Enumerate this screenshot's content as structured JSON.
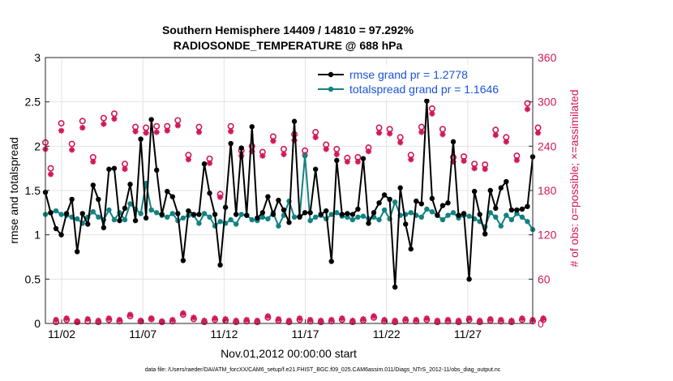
{
  "chart_data": {
    "type": "line",
    "title": "Southern Hemisphere 14409 / 14810 = 97.292%",
    "subtitle": "RADIOSONDE_TEMPERATURE @ 688 hPa",
    "xlabel": "Nov.01,2012 00:00:00 start",
    "ylabel_left": "rmse and totalspread",
    "ylabel_right": "# of obs: o=possible; ×=assimilated",
    "footer": "data file: /Users/raeder/DAI/ATM_forcXX/CAM6_setup/f.e21.FHIST_BGC.f09_025.CAM6assim.011/Diags_NTrS_2012-11/obs_diag_output.nc",
    "x_ticks": [
      {
        "day": 2,
        "label": "11/02"
      },
      {
        "day": 7,
        "label": "11/07"
      },
      {
        "day": 12,
        "label": "11/12"
      },
      {
        "day": 17,
        "label": "11/17"
      },
      {
        "day": 22,
        "label": "11/22"
      },
      {
        "day": 27,
        "label": "11/27"
      }
    ],
    "xlim": [
      1.0,
      31.0
    ],
    "ylim_left": [
      0,
      3
    ],
    "yticks_left": [
      "0",
      "0.5",
      "1",
      "1.5",
      "2",
      "2.5",
      "3"
    ],
    "ylim_right": [
      0,
      360
    ],
    "yticks_right": [
      "0",
      "60",
      "120",
      "180",
      "240",
      "300",
      "360"
    ],
    "legend_position": "top-right",
    "colors": {
      "rmse": "#000000",
      "spread": "#128282",
      "obs": "#d1185a",
      "legend_text": "#1a53d8",
      "grid": "#e2e2e2"
    },
    "series": [
      {
        "name": "rmse grand pr = 1.2778",
        "key": "rmse",
        "values": [
          1.48,
          1.25,
          1.07,
          1.0,
          1.24,
          1.4,
          0.81,
          1.24,
          1.12,
          1.56,
          1.4,
          1.08,
          1.74,
          1.75,
          1.16,
          1.3,
          1.57,
          1.16,
          2.08,
          1.19,
          2.3,
          1.73,
          1.23,
          1.49,
          1.43,
          1.24,
          0.71,
          1.27,
          1.23,
          1.23,
          1.8,
          1.47,
          1.23,
          0.66,
          1.31,
          2.03,
          1.23,
          1.98,
          1.22,
          2.22,
          1.19,
          1.25,
          1.43,
          1.23,
          1.39,
          1.28,
          1.14,
          2.28,
          1.2,
          1.25,
          1.25,
          1.74,
          1.23,
          1.27,
          0.7,
          1.84,
          1.23,
          1.24,
          1.23,
          1.29,
          1.86,
          1.13,
          1.25,
          1.36,
          1.45,
          1.4,
          0.41,
          1.53,
          1.12,
          0.84,
          1.38,
          1.35,
          2.51,
          1.41,
          1.22,
          1.33,
          1.36,
          2.05,
          1.22,
          1.24,
          0.5,
          1.49,
          1.23,
          1.01,
          1.5,
          1.3,
          1.53,
          1.6,
          1.28,
          1.28,
          1.29,
          1.32,
          1.88
        ]
      },
      {
        "name": "totalspread grand pr = 1.1646",
        "key": "spread",
        "values": [
          1.23,
          1.25,
          1.27,
          1.23,
          1.22,
          1.2,
          1.18,
          1.13,
          1.2,
          1.26,
          1.2,
          1.17,
          1.28,
          1.17,
          1.25,
          1.17,
          1.35,
          1.29,
          1.24,
          1.58,
          1.28,
          1.25,
          1.22,
          1.2,
          1.24,
          1.16,
          1.19,
          1.22,
          1.22,
          1.13,
          1.24,
          1.2,
          1.1,
          1.15,
          1.13,
          1.17,
          1.12,
          1.23,
          1.22,
          1.17,
          1.16,
          1.2,
          1.18,
          1.25,
          1.1,
          1.22,
          1.38,
          1.2,
          1.21,
          1.89,
          1.16,
          1.2,
          1.22,
          1.18,
          1.23,
          1.25,
          1.21,
          1.2,
          1.17,
          1.2,
          1.21,
          1.18,
          1.2,
          1.17,
          1.28,
          1.18,
          1.37,
          1.22,
          1.23,
          1.25,
          1.22,
          1.2,
          1.29,
          1.26,
          1.22,
          1.17,
          1.22,
          1.25,
          1.19,
          1.22,
          1.21,
          1.18,
          1.15,
          1.09,
          1.25,
          1.2,
          1.1,
          1.22,
          1.17,
          1.24,
          1.2,
          1.15,
          1.06
        ]
      },
      {
        "name": "obs possible",
        "key": "possible",
        "values": [
          245,
          210,
          2,
          271,
          5,
          243,
          2,
          274,
          3,
          225,
          2,
          278,
          5,
          284,
          3,
          216,
          10,
          266,
          3,
          265,
          6,
          267,
          2,
          267,
          3,
          275,
          12,
          228,
          6,
          266,
          2,
          223,
          5,
          175,
          4,
          267,
          2,
          234,
          3,
          240,
          2,
          232,
          8,
          253,
          4,
          236,
          2,
          256,
          5,
          234,
          3,
          259,
          2,
          242,
          3,
          236,
          5,
          224,
          2,
          225,
          4,
          238,
          8,
          265,
          3,
          263,
          2,
          252,
          4,
          228,
          3,
          266,
          5,
          291,
          2,
          263,
          3,
          225,
          2,
          226,
          5,
          216,
          2,
          215,
          4,
          262,
          3,
          252,
          2,
          227,
          5,
          298,
          3,
          265,
          5
        ]
      },
      {
        "name": "obs assimilated",
        "key": "assimilated",
        "values": [
          236,
          202,
          5,
          261,
          7,
          235,
          3,
          265,
          6,
          219,
          4,
          270,
          7,
          277,
          5,
          209,
          12,
          260,
          4,
          258,
          7,
          259,
          3,
          261,
          5,
          268,
          14,
          222,
          8,
          259,
          4,
          217,
          7,
          171,
          6,
          260,
          4,
          227,
          5,
          233,
          4,
          227,
          10,
          247,
          6,
          229,
          4,
          248,
          7,
          228,
          5,
          252,
          4,
          236,
          5,
          229,
          7,
          219,
          4,
          219,
          6,
          233,
          10,
          258,
          5,
          257,
          4,
          245,
          6,
          222,
          5,
          259,
          7,
          284,
          4,
          256,
          5,
          219,
          4,
          220,
          7,
          210,
          4,
          209,
          6,
          255,
          5,
          246,
          4,
          221,
          7,
          290,
          5,
          258,
          7
        ]
      }
    ]
  }
}
